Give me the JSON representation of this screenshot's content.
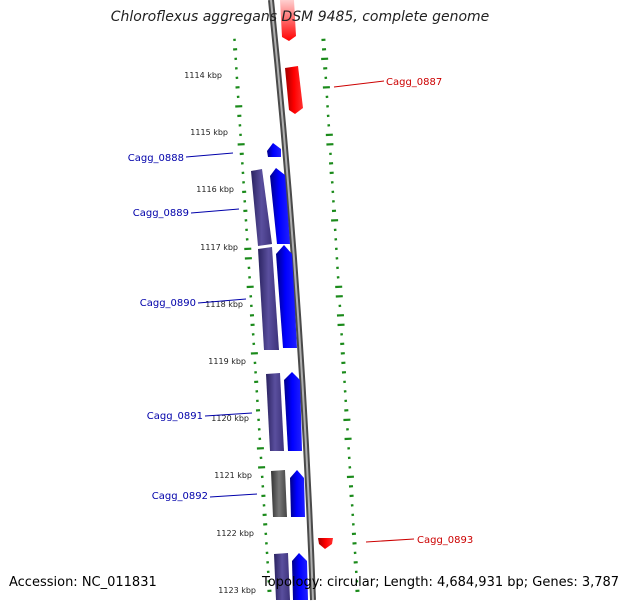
{
  "title": "Chloroflexus aggregans DSM 9485, complete genome",
  "accession": "Accession: NC_011831",
  "summary": "Topology: circular; Length: 4,684,931 bp; Genes: 3,787",
  "kbp_ticks": [
    "1114 kbp",
    "1115 kbp",
    "1116 kbp",
    "1117 kbp",
    "1118 kbp",
    "1119 kbp",
    "1120 kbp",
    "1121 kbp",
    "1122 kbp",
    "1123 kbp"
  ],
  "genes": [
    {
      "label": "Cagg_0887",
      "strand": "plus",
      "color": "#ff0000"
    },
    {
      "label": "Cagg_0888",
      "strand": "minus",
      "color": "#0000ff"
    },
    {
      "label": "Cagg_0889",
      "strand": "minus",
      "color": "#0000ff"
    },
    {
      "label": "Cagg_0890",
      "strand": "minus",
      "color": "#0000ff"
    },
    {
      "label": "Cagg_0891",
      "strand": "minus",
      "color": "#0000ff"
    },
    {
      "label": "Cagg_0892",
      "strand": "minus",
      "color": "#0000ff"
    },
    {
      "label": "Cagg_0893",
      "strand": "plus",
      "color": "#ff0000"
    }
  ],
  "colors": {
    "plus_strand": "#ff0000",
    "minus_strand": "#0000ff",
    "cog_track": "#4b3f8c",
    "backbone": "#808080",
    "gc_track": "#1a8a1a",
    "label_plus": "#cc0000",
    "label_minus": "#0000aa"
  }
}
